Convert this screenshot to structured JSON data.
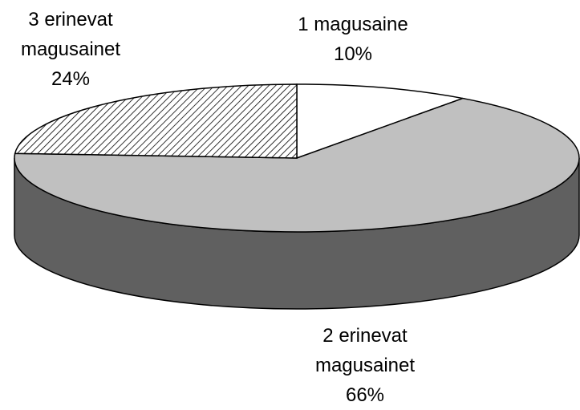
{
  "chart_data": {
    "type": "pie3d",
    "categories": [
      "1 magusaine",
      "2 erinevat magusainet",
      "3 erinevat magusainet"
    ],
    "values": [
      10,
      66,
      24
    ],
    "value_labels": [
      "10%",
      "66%",
      "24%"
    ],
    "colors": [
      "#ffffff",
      "#c0c0c0",
      "#ffffff"
    ],
    "hatch": [
      false,
      false,
      true
    ]
  }
}
